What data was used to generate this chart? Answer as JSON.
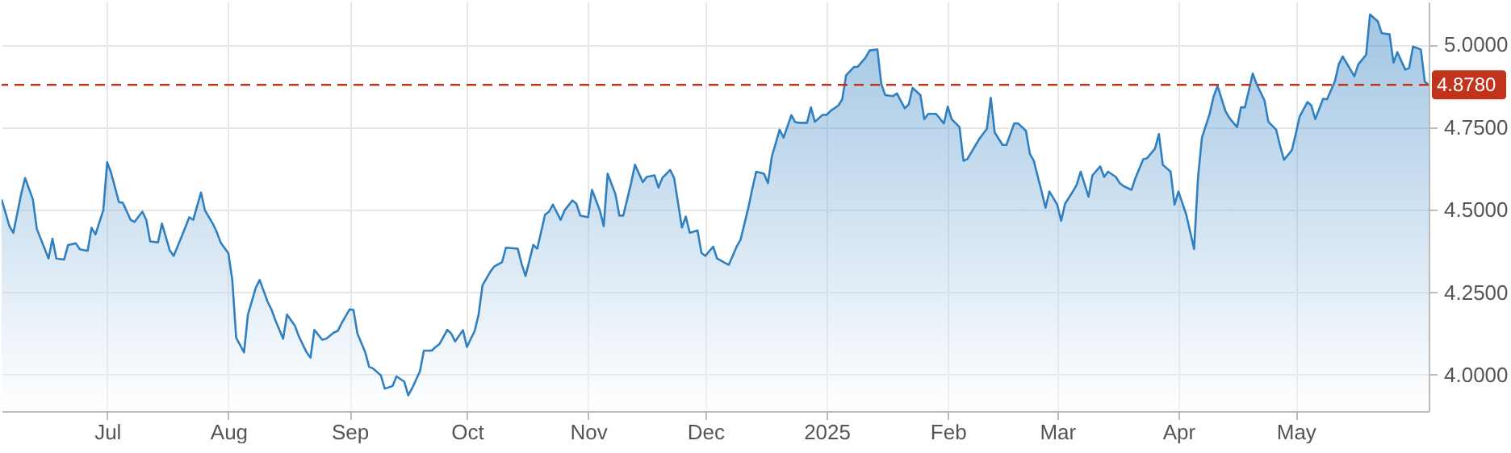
{
  "chart_data": {
    "type": "area",
    "x": [
      "2024-06-04",
      "2024-06-06",
      "2024-06-07",
      "2024-06-09",
      "2024-06-10",
      "2024-06-12",
      "2024-06-13",
      "2024-06-16",
      "2024-06-17",
      "2024-06-18",
      "2024-06-20",
      "2024-06-21",
      "2024-06-23",
      "2024-06-24",
      "2024-06-26",
      "2024-06-27",
      "2024-06-28",
      "2024-06-30",
      "2024-07-01",
      "2024-07-02",
      "2024-07-04",
      "2024-07-05",
      "2024-07-07",
      "2024-07-08",
      "2024-07-10",
      "2024-07-11",
      "2024-07-12",
      "2024-07-14",
      "2024-07-15",
      "2024-07-17",
      "2024-07-18",
      "2024-07-20",
      "2024-07-22",
      "2024-07-23",
      "2024-07-25",
      "2024-07-26",
      "2024-07-28",
      "2024-07-29",
      "2024-07-30",
      "2024-08-01",
      "2024-08-02",
      "2024-08-03",
      "2024-08-05",
      "2024-08-06",
      "2024-08-08",
      "2024-08-09",
      "2024-08-11",
      "2024-08-12",
      "2024-08-13",
      "2024-08-15",
      "2024-08-16",
      "2024-08-18",
      "2024-08-19",
      "2024-08-21",
      "2024-08-22",
      "2024-08-23",
      "2024-08-25",
      "2024-08-26",
      "2024-08-28",
      "2024-08-29",
      "2024-08-30",
      "2024-09-01",
      "2024-09-02",
      "2024-09-03",
      "2024-09-05",
      "2024-09-06",
      "2024-09-07",
      "2024-09-09",
      "2024-09-10",
      "2024-09-12",
      "2024-09-13",
      "2024-09-15",
      "2024-09-16",
      "2024-09-17",
      "2024-09-19",
      "2024-09-20",
      "2024-09-22",
      "2024-09-23",
      "2024-09-24",
      "2024-09-26",
      "2024-09-27",
      "2024-09-28",
      "2024-09-30",
      "2024-10-01",
      "2024-10-03",
      "2024-10-04",
      "2024-10-05",
      "2024-10-07",
      "2024-10-08",
      "2024-10-10",
      "2024-10-11",
      "2024-10-14",
      "2024-10-15",
      "2024-10-16",
      "2024-10-18",
      "2024-10-19",
      "2024-10-21",
      "2024-10-22",
      "2024-10-23",
      "2024-10-25",
      "2024-10-26",
      "2024-10-28",
      "2024-10-29",
      "2024-10-30",
      "2024-11-01",
      "2024-11-02",
      "2024-11-04",
      "2024-11-05",
      "2024-11-06",
      "2024-11-08",
      "2024-11-09",
      "2024-11-10",
      "2024-11-12",
      "2024-11-13",
      "2024-11-15",
      "2024-11-16",
      "2024-11-18",
      "2024-11-19",
      "2024-11-20",
      "2024-11-22",
      "2024-11-23",
      "2024-11-25",
      "2024-11-26",
      "2024-11-27",
      "2024-11-29",
      "2024-11-30",
      "2024-12-01",
      "2024-12-03",
      "2024-12-04",
      "2024-12-06",
      "2024-12-07",
      "2024-12-09",
      "2024-12-10",
      "2024-12-12",
      "2024-12-13",
      "2024-12-14",
      "2024-12-16",
      "2024-12-17",
      "2024-12-18",
      "2024-12-20",
      "2024-12-21",
      "2024-12-23",
      "2024-12-24",
      "2024-12-25",
      "2024-12-27",
      "2024-12-28",
      "2024-12-29",
      "2024-12-31",
      "2025-01-01",
      "2025-01-02",
      "2025-01-04",
      "2025-01-05",
      "2025-01-06",
      "2025-01-08",
      "2025-01-09",
      "2025-01-11",
      "2025-01-12",
      "2025-01-14",
      "2025-01-15",
      "2025-01-16",
      "2025-01-18",
      "2025-01-19",
      "2025-01-21",
      "2025-01-22",
      "2025-01-23",
      "2025-01-25",
      "2025-01-26",
      "2025-01-27",
      "2025-01-29",
      "2025-01-31",
      "2025-02-01",
      "2025-02-02",
      "2025-02-04",
      "2025-02-05",
      "2025-02-06",
      "2025-02-08",
      "2025-02-09",
      "2025-02-11",
      "2025-02-12",
      "2025-02-13",
      "2025-02-15",
      "2025-02-16",
      "2025-02-18",
      "2025-02-19",
      "2025-02-21",
      "2025-02-22",
      "2025-02-23",
      "2025-02-25",
      "2025-02-26",
      "2025-02-27",
      "2025-03-01",
      "2025-03-02",
      "2025-03-03",
      "2025-03-05",
      "2025-03-06",
      "2025-03-07",
      "2025-03-09",
      "2025-03-10",
      "2025-03-12",
      "2025-03-13",
      "2025-03-14",
      "2025-03-16",
      "2025-03-17",
      "2025-03-18",
      "2025-03-20",
      "2025-03-21",
      "2025-03-23",
      "2025-03-24",
      "2025-03-26",
      "2025-03-27",
      "2025-03-28",
      "2025-03-30",
      "2025-03-31",
      "2025-04-01",
      "2025-04-03",
      "2025-04-05",
      "2025-04-06",
      "2025-04-07",
      "2025-04-09",
      "2025-04-10",
      "2025-04-11",
      "2025-04-13",
      "2025-04-14",
      "2025-04-16",
      "2025-04-17",
      "2025-04-18",
      "2025-04-20",
      "2025-04-21",
      "2025-04-23",
      "2025-04-24",
      "2025-04-26",
      "2025-04-27",
      "2025-04-28",
      "2025-04-30",
      "2025-05-01",
      "2025-05-02",
      "2025-05-04",
      "2025-05-05",
      "2025-05-06",
      "2025-05-08",
      "2025-05-09",
      "2025-05-11",
      "2025-05-12",
      "2025-05-13",
      "2025-05-15",
      "2025-05-16",
      "2025-05-17",
      "2025-05-19",
      "2025-05-20",
      "2025-05-22",
      "2025-05-23",
      "2025-05-25",
      "2025-05-26",
      "2025-05-27",
      "2025-05-29",
      "2025-05-30",
      "2025-05-31",
      "2025-06-02",
      "2025-06-03",
      "2025-06-04"
    ],
    "series": [
      {
        "color": "#2f7fc1",
        "values": [
          4.531,
          4.45,
          4.43,
          4.547,
          4.596,
          4.531,
          4.442,
          4.352,
          4.412,
          4.352,
          4.349,
          4.393,
          4.398,
          4.38,
          4.375,
          4.445,
          4.425,
          4.498,
          4.644,
          4.612,
          4.523,
          4.521,
          4.469,
          4.463,
          4.494,
          4.469,
          4.404,
          4.401,
          4.458,
          4.377,
          4.36,
          4.417,
          4.477,
          4.469,
          4.552,
          4.498,
          4.458,
          4.433,
          4.401,
          4.368,
          4.287,
          4.112,
          4.068,
          4.182,
          4.263,
          4.287,
          4.222,
          4.198,
          4.166,
          4.109,
          4.182,
          4.149,
          4.117,
          4.068,
          4.052,
          4.136,
          4.106,
          4.109,
          4.128,
          4.133,
          4.157,
          4.198,
          4.196,
          4.125,
          4.068,
          4.024,
          4.019,
          3.998,
          3.958,
          3.966,
          3.995,
          3.979,
          3.938,
          3.959,
          4.011,
          4.073,
          4.073,
          4.084,
          4.093,
          4.136,
          4.125,
          4.101,
          4.135,
          4.084,
          4.133,
          4.182,
          4.271,
          4.312,
          4.328,
          4.341,
          4.385,
          4.382,
          4.336,
          4.299,
          4.393,
          4.382,
          4.485,
          4.494,
          4.515,
          4.469,
          4.498,
          4.528,
          4.518,
          4.482,
          4.477,
          4.56,
          4.498,
          4.45,
          4.609,
          4.547,
          4.482,
          4.482,
          4.58,
          4.636,
          4.583,
          4.599,
          4.604,
          4.567,
          4.596,
          4.62,
          4.596,
          4.446,
          4.479,
          4.43,
          4.437,
          4.369,
          4.36,
          4.388,
          4.352,
          4.339,
          4.333,
          4.388,
          4.409,
          4.506,
          4.563,
          4.615,
          4.609,
          4.58,
          4.661,
          4.742,
          4.718,
          4.786,
          4.765,
          4.763,
          4.763,
          4.81,
          4.766,
          4.787,
          4.787,
          4.799,
          4.815,
          4.834,
          4.907,
          4.932,
          4.933,
          4.961,
          4.982,
          4.985,
          4.88,
          4.847,
          4.844,
          4.852,
          4.807,
          4.818,
          4.869,
          4.847,
          4.774,
          4.79,
          4.79,
          4.761,
          4.812,
          4.774,
          4.75,
          4.648,
          4.653,
          4.693,
          4.713,
          4.745,
          4.839,
          4.734,
          4.696,
          4.696,
          4.761,
          4.761,
          4.739,
          4.669,
          4.648,
          4.555,
          4.506,
          4.555,
          4.515,
          4.466,
          4.518,
          4.555,
          4.576,
          4.615,
          4.539,
          4.604,
          4.631,
          4.599,
          4.615,
          4.599,
          4.58,
          4.571,
          4.56,
          4.596,
          4.653,
          4.656,
          4.685,
          4.729,
          4.636,
          4.615,
          4.515,
          4.555,
          4.485,
          4.381,
          4.596,
          4.718,
          4.791,
          4.843,
          4.875,
          4.799,
          4.778,
          4.75,
          4.81,
          4.81,
          4.912,
          4.88,
          4.831,
          4.766,
          4.742,
          4.693,
          4.651,
          4.68,
          4.729,
          4.782,
          4.826,
          4.815,
          4.774,
          4.836,
          4.834,
          4.888,
          4.94,
          4.964,
          4.924,
          4.904,
          4.94,
          4.969,
          5.091,
          5.07,
          5.034,
          5.031,
          4.945,
          4.977,
          4.924,
          4.929,
          4.994,
          4.985,
          4.888,
          4.878
        ]
      }
    ],
    "xlim": [
      "2024-06-04",
      "2025-06-04"
    ],
    "xticks": [
      {
        "value": "2024-07-01",
        "label": "Jul"
      },
      {
        "value": "2024-08-01",
        "label": "Aug"
      },
      {
        "value": "2024-09-01",
        "label": "Sep"
      },
      {
        "value": "2024-10-01",
        "label": "Oct"
      },
      {
        "value": "2024-11-01",
        "label": "Nov"
      },
      {
        "value": "2024-12-01",
        "label": "Dec"
      },
      {
        "value": "2025-01-01",
        "label": "2025"
      },
      {
        "value": "2025-02-01",
        "label": "Feb"
      },
      {
        "value": "2025-03-01",
        "label": "Mar"
      },
      {
        "value": "2025-04-01",
        "label": "Apr"
      },
      {
        "value": "2025-05-01",
        "label": "May"
      }
    ],
    "ylim": [
      3.89,
      5.13
    ],
    "yticks": [
      {
        "value": 4,
        "label": "4.0000"
      },
      {
        "value": 4.25,
        "label": "4.2500"
      },
      {
        "value": 4.5,
        "label": "4.5000"
      },
      {
        "value": 4.75,
        "label": "4.7500"
      },
      {
        "value": 5,
        "label": "5.0000"
      }
    ],
    "ref_lines": [
      {
        "axis": "y",
        "value": 4.878,
        "label": "4.8780",
        "color": "#c0341d",
        "line_style": "dashed"
      }
    ],
    "grid": true
  }
}
